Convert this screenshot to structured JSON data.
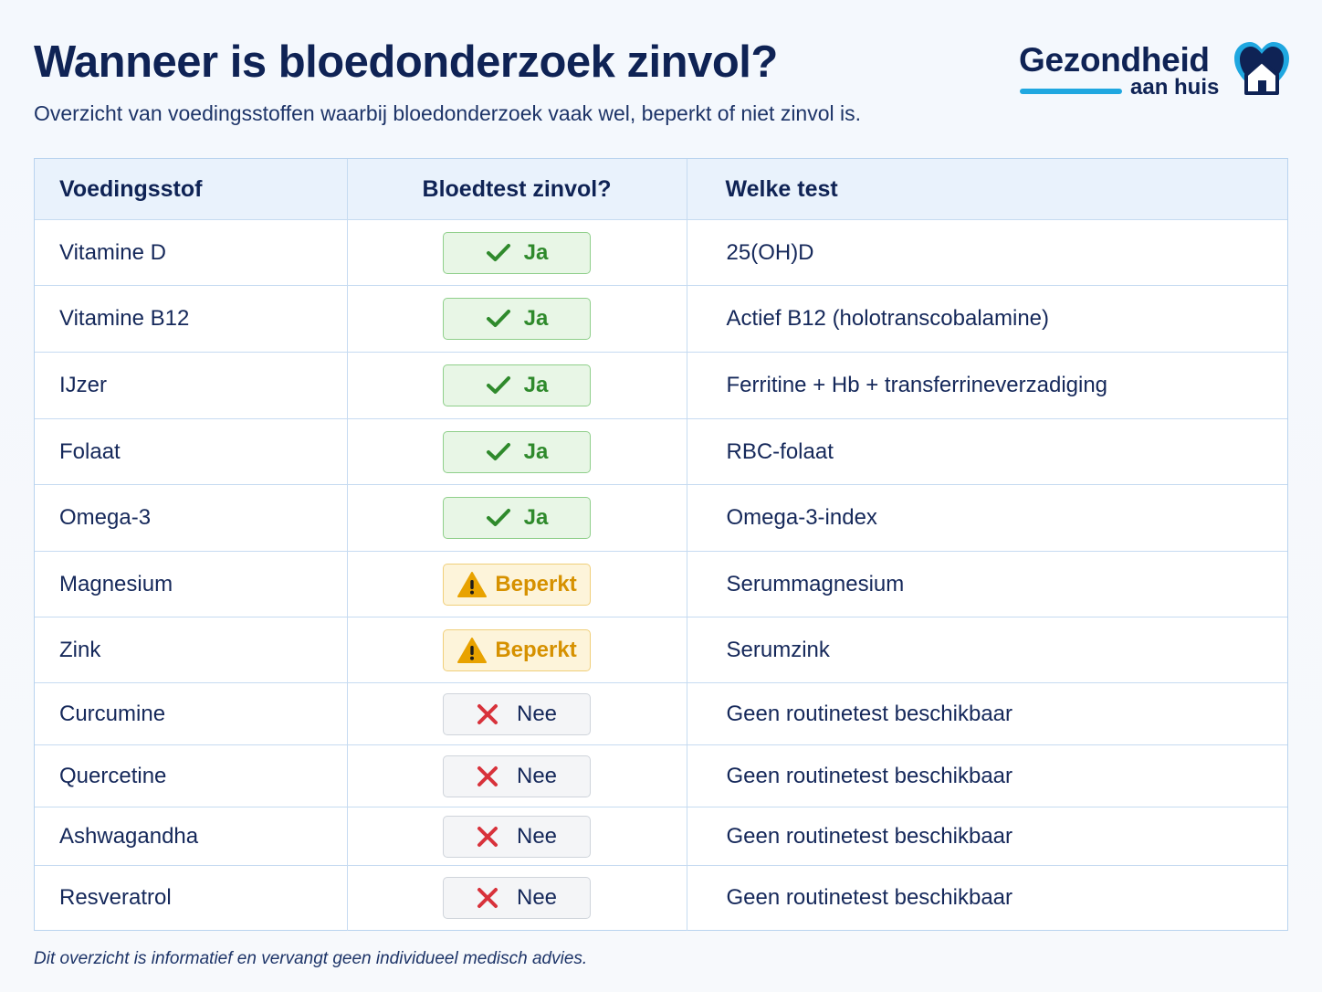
{
  "header": {
    "title": "Wanneer is bloedonderzoek zinvol?",
    "subtitle": "Overzicht van voedingsstoffen waarbij bloedonderzoek vaak wel, beperkt of niet zinvol is."
  },
  "logo": {
    "name": "Gezondheid",
    "tagline": "aan huis",
    "bar_color": "#1fa7e0",
    "icon": "heart-house-icon"
  },
  "table": {
    "columns": [
      "Voedingsstof",
      "Bloedtest zinvol?",
      "Welke test"
    ],
    "rows": [
      {
        "nutrient": "Vitamine D",
        "status": "yes",
        "status_label": "Ja",
        "test": "25(OH)D"
      },
      {
        "nutrient": "Vitamine B12",
        "status": "yes",
        "status_label": "Ja",
        "test": "Actief B12 (holotranscobalamine)"
      },
      {
        "nutrient": "IJzer",
        "status": "yes",
        "status_label": "Ja",
        "test": "Ferritine + Hb + transferrineverzadiging"
      },
      {
        "nutrient": "Folaat",
        "status": "yes",
        "status_label": "Ja",
        "test": "RBC-folaat"
      },
      {
        "nutrient": "Omega-3",
        "status": "yes",
        "status_label": "Ja",
        "test": "Omega-3-index"
      },
      {
        "nutrient": "Magnesium",
        "status": "limited",
        "status_label": "Beperkt",
        "test": "Serummagnesium"
      },
      {
        "nutrient": "Zink",
        "status": "limited",
        "status_label": "Beperkt",
        "test": "Serumzink"
      },
      {
        "nutrient": "Curcumine",
        "status": "no",
        "status_label": "Nee",
        "test": "Geen routinetest beschikbaar"
      },
      {
        "nutrient": "Quercetine",
        "status": "no",
        "status_label": "Nee",
        "test": "Geen routinetest beschikbaar"
      },
      {
        "nutrient": "Ashwagandha",
        "status": "no",
        "status_label": "Nee",
        "test": "Geen routinetest beschikbaar"
      },
      {
        "nutrient": "Resveratrol",
        "status": "no",
        "status_label": "Nee",
        "test": "Geen routinetest beschikbaar"
      }
    ]
  },
  "status_icons": {
    "yes": "check-icon",
    "limited": "warning-icon",
    "no": "cross-icon"
  },
  "colors": {
    "yes": "#2f8a2c",
    "limited": "#d69100",
    "no": "#d8323b"
  },
  "footnote": "Dit overzicht is informatief en vervangt geen individueel medisch advies."
}
